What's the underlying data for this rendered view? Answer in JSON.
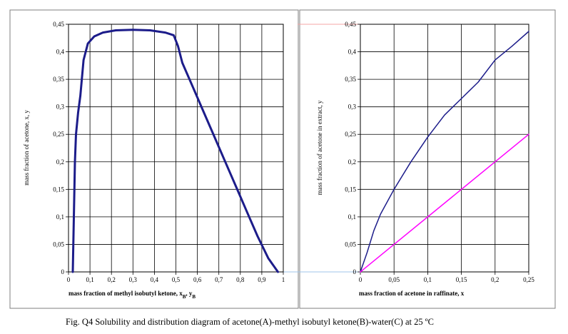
{
  "caption": {
    "text": "Fig. Q4 Solubility and distribution diagram of acetone(A)-methyl isobutyl ketone(B)-water(C) at 25 ºC"
  },
  "colors": {
    "curve": "#1c1c8a",
    "diagonal": "#ff00ff",
    "grid": "#000000",
    "panel_border": "#7f7f7f",
    "ghost_line": "#f4a6a6"
  },
  "chart_data": [
    {
      "type": "line",
      "title": "",
      "xlabel": "mass fraction of methyl isobutyl ketone, x",
      "xlabel_sub": "B",
      "xlabel_sep": ", y",
      "xlabel_sub2": "B",
      "ylabel": "mass fraction of acetone, x, y",
      "xlim": [
        0,
        1
      ],
      "ylim": [
        0,
        0.45
      ],
      "grid": true,
      "x_ticks": [
        0,
        0.1,
        0.2,
        0.3,
        0.4,
        0.5,
        0.6,
        0.7,
        0.8,
        0.9,
        1
      ],
      "x_tick_labels": [
        "0",
        "0,1",
        "0,2",
        "0,3",
        "0,4",
        "0,5",
        "0,6",
        "0,7",
        "0,8",
        "0,9",
        "1"
      ],
      "y_ticks": [
        0,
        0.05,
        0.1,
        0.15,
        0.2,
        0.25,
        0.3,
        0.35,
        0.4,
        0.45
      ],
      "y_tick_labels": [
        "0",
        "0,05",
        "0,1",
        "0,15",
        "0,2",
        "0,25",
        "0,3",
        "0,35",
        "0,4",
        "0,45"
      ],
      "series": [
        {
          "x": [
            0.02,
            0.025,
            0.03,
            0.035,
            0.045,
            0.055,
            0.07,
            0.09,
            0.12,
            0.16,
            0.22,
            0.3,
            0.38,
            0.45,
            0.49,
            0.51,
            0.53,
            0.58,
            0.63,
            0.68,
            0.73,
            0.78,
            0.83,
            0.88,
            0.93,
            0.975
          ],
          "y": [
            0,
            0.1,
            0.2,
            0.25,
            0.29,
            0.32,
            0.385,
            0.415,
            0.428,
            0.435,
            0.439,
            0.44,
            0.439,
            0.435,
            0.43,
            0.41,
            0.38,
            0.335,
            0.29,
            0.245,
            0.2,
            0.155,
            0.11,
            0.065,
            0.025,
            0
          ]
        }
      ]
    },
    {
      "type": "line",
      "title": "",
      "xlabel": "mass fraction of acetone in raffinate, x",
      "ylabel": "mass fraction of acetone in extract, y",
      "xlim": [
        0,
        0.25
      ],
      "ylim": [
        0,
        0.45
      ],
      "grid": true,
      "x_ticks": [
        0,
        0.05,
        0.1,
        0.15,
        0.2,
        0.25
      ],
      "x_tick_labels": [
        "0",
        "0,05",
        "0,1",
        "0,15",
        "0,2",
        "0,25"
      ],
      "y_ticks": [
        0,
        0.05,
        0.1,
        0.15,
        0.2,
        0.25,
        0.3,
        0.35,
        0.4,
        0.45
      ],
      "y_tick_labels": [
        "0",
        "0,05",
        "0,1",
        "0,15",
        "0,2",
        "0,25",
        "0,3",
        "0,35",
        "0,4",
        "0,45"
      ],
      "series": [
        {
          "x": [
            0,
            0.01,
            0.02,
            0.03,
            0.05,
            0.075,
            0.1,
            0.125,
            0.15,
            0.175,
            0.2,
            0.225,
            0.25
          ],
          "y": [
            0,
            0.035,
            0.075,
            0.105,
            0.15,
            0.2,
            0.245,
            0.285,
            0.315,
            0.345,
            0.385,
            0.41,
            0.437
          ]
        },
        {
          "x": [
            0,
            0.25
          ],
          "y": [
            0,
            0.25
          ]
        }
      ]
    }
  ]
}
